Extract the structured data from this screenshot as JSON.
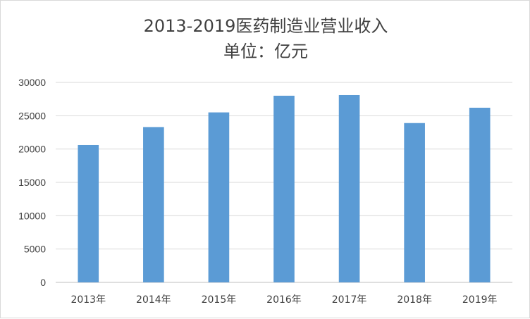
{
  "chart_data": {
    "type": "bar",
    "title_line1": "2013-2019医药制造业营业收入",
    "title_line2": "单位：亿元",
    "categories": [
      "2013年",
      "2014年",
      "2015年",
      "2016年",
      "2017年",
      "2018年",
      "2019年"
    ],
    "values": [
      20600,
      23300,
      25500,
      28000,
      28100,
      23900,
      26200
    ],
    "ylim": [
      0,
      30000
    ],
    "yticks": [
      0,
      5000,
      10000,
      15000,
      20000,
      25000,
      30000
    ],
    "grid": true,
    "bar_color": "#5b9bd5"
  }
}
